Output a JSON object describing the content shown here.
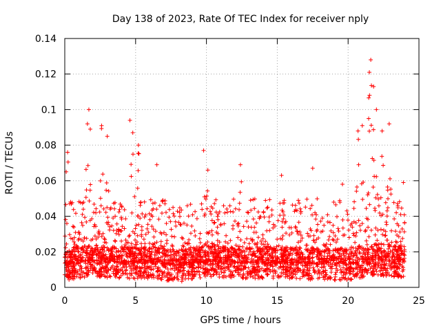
{
  "chart_data": {
    "type": "scatter",
    "title": "Day 138 of 2023, Rate Of TEC Index for receiver nply",
    "xlabel": "GPS time / hours",
    "ylabel": "ROTI / TECUs",
    "xlim": [
      0,
      25
    ],
    "ylim": [
      0,
      0.14
    ],
    "x_ticks": [
      0,
      5,
      10,
      15,
      20,
      25
    ],
    "x_tick_labels": [
      "0",
      "5",
      "10",
      "15",
      "20",
      "25"
    ],
    "y_ticks": [
      0,
      0.02,
      0.04,
      0.06,
      0.08,
      0.1,
      0.12,
      0.14
    ],
    "y_tick_labels": [
      "0",
      "0.02",
      "0.04",
      "0.06",
      "0.08",
      "0.1",
      "0.12",
      "0.14"
    ],
    "grid": true,
    "marker": "plus",
    "series": [
      {
        "name": "ROTI",
        "color": "#ff0000",
        "peaks": [
          {
            "x": 0.1,
            "y": 0.065
          },
          {
            "x": 0.2,
            "y": 0.076
          },
          {
            "x": 1.6,
            "y": 0.092
          },
          {
            "x": 1.7,
            "y": 0.1
          },
          {
            "x": 1.8,
            "y": 0.089
          },
          {
            "x": 2.6,
            "y": 0.091
          },
          {
            "x": 3.0,
            "y": 0.085
          },
          {
            "x": 4.6,
            "y": 0.094
          },
          {
            "x": 4.8,
            "y": 0.087
          },
          {
            "x": 5.2,
            "y": 0.08
          },
          {
            "x": 6.5,
            "y": 0.069
          },
          {
            "x": 9.8,
            "y": 0.077
          },
          {
            "x": 10.1,
            "y": 0.066
          },
          {
            "x": 12.4,
            "y": 0.069
          },
          {
            "x": 15.3,
            "y": 0.063
          },
          {
            "x": 17.5,
            "y": 0.067
          },
          {
            "x": 19.6,
            "y": 0.058
          },
          {
            "x": 20.7,
            "y": 0.088
          },
          {
            "x": 21.0,
            "y": 0.091
          },
          {
            "x": 21.5,
            "y": 0.121
          },
          {
            "x": 21.6,
            "y": 0.128
          },
          {
            "x": 21.8,
            "y": 0.113
          },
          {
            "x": 22.0,
            "y": 0.1
          },
          {
            "x": 22.4,
            "y": 0.088
          },
          {
            "x": 22.9,
            "y": 0.092
          },
          {
            "x": 23.9,
            "y": 0.059
          }
        ],
        "baseline": [
          {
            "x": 0,
            "y": 0.013
          },
          {
            "x": 2,
            "y": 0.015
          },
          {
            "x": 4,
            "y": 0.014
          },
          {
            "x": 6,
            "y": 0.014
          },
          {
            "x": 8,
            "y": 0.012
          },
          {
            "x": 10,
            "y": 0.015
          },
          {
            "x": 12,
            "y": 0.014
          },
          {
            "x": 14,
            "y": 0.014
          },
          {
            "x": 16,
            "y": 0.014
          },
          {
            "x": 18,
            "y": 0.013
          },
          {
            "x": 20,
            "y": 0.013
          },
          {
            "x": 22,
            "y": 0.016
          },
          {
            "x": 24,
            "y": 0.014
          }
        ]
      }
    ]
  }
}
